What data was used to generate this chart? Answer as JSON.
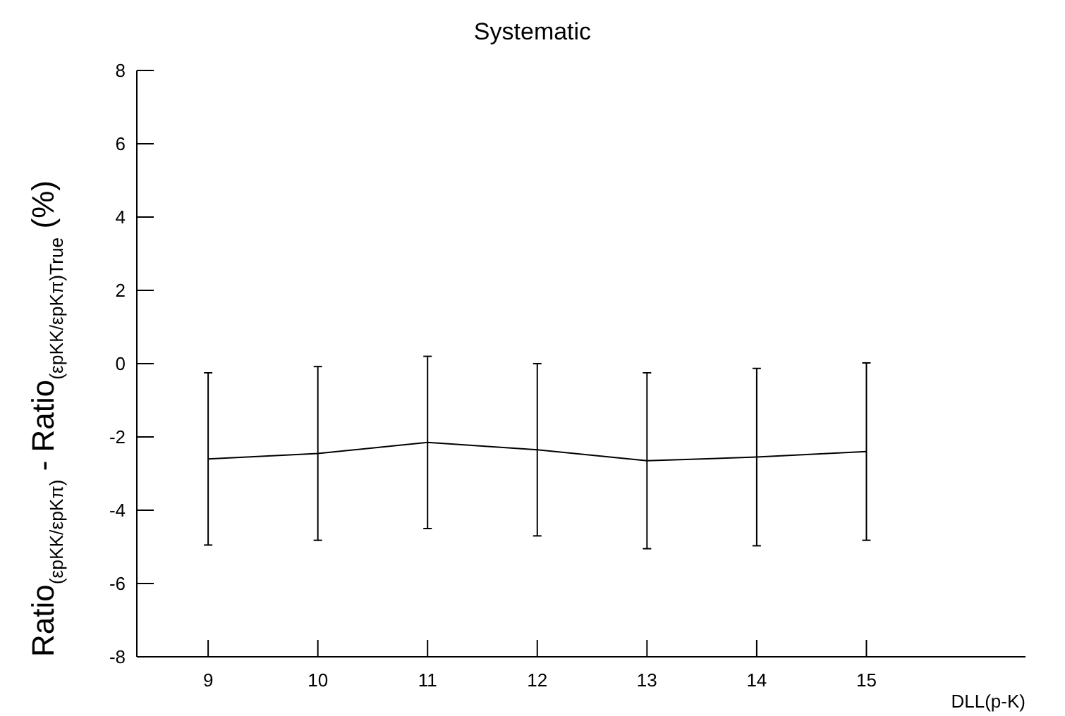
{
  "chart_data": {
    "type": "line",
    "title": "Systematic",
    "xlabel": "DLL(p-K)",
    "ylabel": "Ratio$_{(εpKK/εpKπ)}$ - Ratio$_{(εpKK/εpKπ)True}$ (%)",
    "x": [
      9,
      10,
      11,
      12,
      13,
      14,
      15
    ],
    "series": [
      {
        "color": "#000000",
        "values": [
          -2.6,
          -2.45,
          -2.15,
          -2.35,
          -2.65,
          -2.55,
          -2.4
        ],
        "errors": [
          2.35,
          2.37,
          2.35,
          2.35,
          2.4,
          2.42,
          2.42
        ]
      }
    ],
    "xlim": [
      8.35,
      16.45
    ],
    "xticks": [
      9,
      10,
      11,
      12,
      13,
      14,
      15
    ],
    "ylim": [
      -8,
      8
    ],
    "yticks": [
      -8,
      -6,
      -4,
      -2,
      0,
      2,
      4,
      6,
      8
    ],
    "grid": false,
    "marker": "none",
    "line_style": "solid"
  }
}
